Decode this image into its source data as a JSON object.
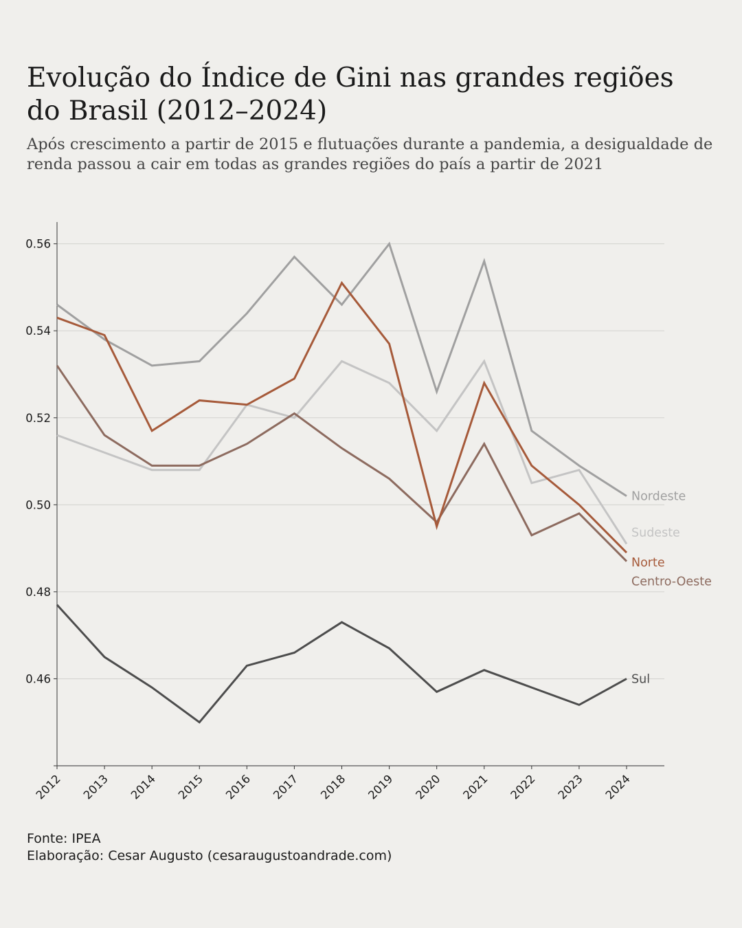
{
  "title": "Evolução do Índice de Gini nas grandes regiões do Brasil (2012–2024)",
  "subtitle": "Após crescimento a partir de 2015 e flutuações durante a pandemia, a desigualdade de renda passou a cair em todas as grandes regiões do país a partir de 2021",
  "footer": {
    "source": "Fonte: IPEA",
    "credit": "Elaboração: Cesar Augusto (cesaraugustoandrade.com)"
  },
  "chart_data": {
    "type": "line",
    "title": "Evolução do Índice de Gini nas grandes regiões do Brasil (2012–2024)",
    "xlabel": "",
    "ylabel": "",
    "x": [
      "2012",
      "2013",
      "2014",
      "2015",
      "2016",
      "2017",
      "2018",
      "2019",
      "2020",
      "2021",
      "2022",
      "2023",
      "2024"
    ],
    "ylim": [
      0.44,
      0.565
    ],
    "yticks": [
      "0.46",
      "0.48",
      "0.50",
      "0.52",
      "0.54",
      "0.56"
    ],
    "grid": "horizontal",
    "legend": "direct labels at line ends (right)",
    "series": [
      {
        "name": "Nordeste",
        "color": "#a0a0a0",
        "values": [
          0.546,
          0.538,
          0.532,
          0.533,
          0.544,
          0.557,
          0.546,
          0.56,
          0.526,
          0.556,
          0.517,
          0.509,
          0.502
        ]
      },
      {
        "name": "Sudeste",
        "color": "#c4c4c4",
        "values": [
          0.516,
          0.512,
          0.508,
          0.508,
          0.523,
          0.52,
          0.533,
          0.528,
          0.517,
          0.533,
          0.505,
          0.508,
          0.491
        ]
      },
      {
        "name": "Centro-Oeste",
        "color": "#8d6b5f",
        "values": [
          0.532,
          0.516,
          0.509,
          0.509,
          0.514,
          0.521,
          0.513,
          0.506,
          0.496,
          0.514,
          0.493,
          0.498,
          0.487
        ]
      },
      {
        "name": "Norte",
        "color": "#a65a3a",
        "values": [
          0.543,
          0.539,
          0.517,
          0.524,
          0.523,
          0.529,
          0.551,
          0.537,
          0.495,
          0.528,
          0.509,
          0.5,
          0.489
        ]
      },
      {
        "name": "Sul",
        "color": "#4d4d4d",
        "values": [
          0.477,
          0.465,
          0.458,
          0.45,
          0.463,
          0.466,
          0.473,
          0.467,
          0.457,
          0.462,
          0.458,
          0.454,
          0.46
        ]
      }
    ]
  }
}
